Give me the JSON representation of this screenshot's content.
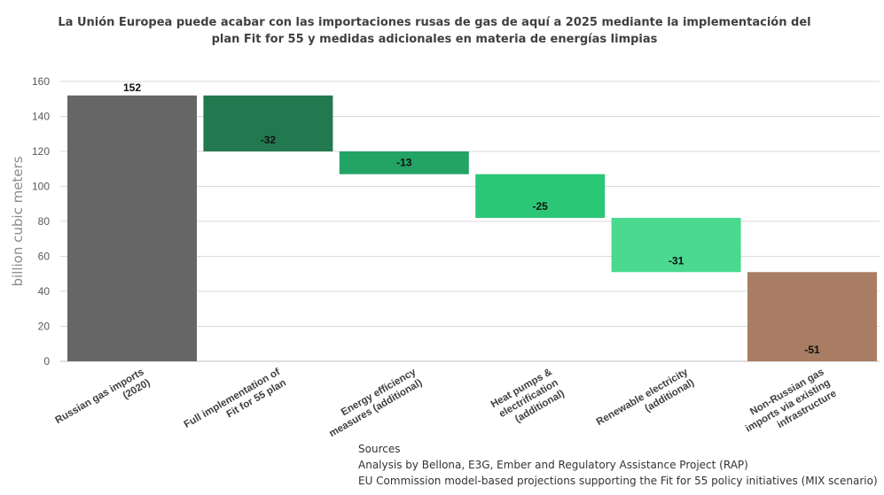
{
  "title_lines": [
    "La Unión Europea puede acabar con las importaciones rusas de gas de aquí a 2025 mediante la implementación del",
    "plan Fit for 55 y medidas adicionales en materia de energías limpias"
  ],
  "sources": {
    "heading": "Sources",
    "lines": [
      "Analysis by Bellona, E3G, Ember and Regulatory Assistance Project (RAP)",
      "EU Commission model-based projections supporting the Fit for 55 policy initiatives  (MIX scenario)"
    ]
  },
  "chart_data": {
    "type": "waterfall",
    "ylabel": "billion cubic meters",
    "ylim": [
      0,
      160
    ],
    "yticks": [
      0,
      20,
      40,
      60,
      80,
      100,
      120,
      140,
      160
    ],
    "grid": true,
    "categories": [
      [
        "Russian gas imports",
        "(2020)"
      ],
      [
        "Full implementation of",
        "Fit for 55 plan"
      ],
      [
        "Energy efficiency",
        "measures (additional)"
      ],
      [
        "Heat pumps &",
        "electrification",
        "(additional)"
      ],
      [
        "Renewable electricity",
        "(additional)"
      ],
      [
        "Non-Russian gas",
        "imports via existing",
        "infrastructure"
      ]
    ],
    "bars": [
      {
        "label": "152",
        "start": 0,
        "end": 152,
        "color": "#666666"
      },
      {
        "label": "-32",
        "start": 152,
        "end": 120,
        "color": "#23794F"
      },
      {
        "label": "-13",
        "start": 120,
        "end": 107,
        "color": "#23A364"
      },
      {
        "label": "-25",
        "start": 107,
        "end": 82,
        "color": "#2BC777"
      },
      {
        "label": "-31",
        "start": 82,
        "end": 51,
        "color": "#4AD98F"
      },
      {
        "label": "-51",
        "start": 51,
        "end": 0,
        "color": "#A87D64"
      }
    ]
  }
}
